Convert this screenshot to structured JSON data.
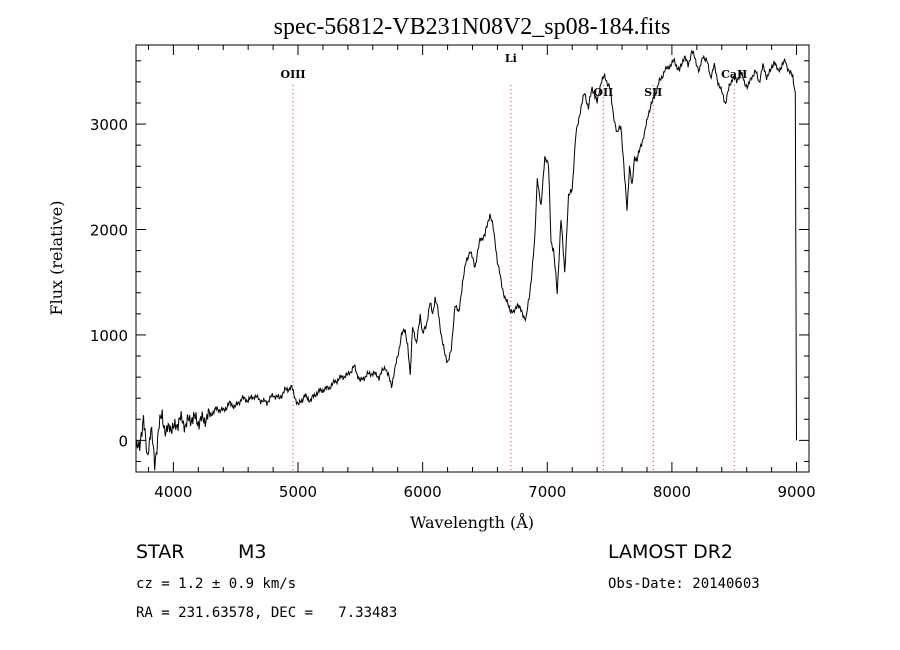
{
  "chart_data": {
    "type": "line",
    "title": "spec-56812-VB231N08V2_sp08-184.fits",
    "xlabel": "Wavelength (Å)",
    "ylabel": "Flux (relative)",
    "xlim": [
      3700,
      9100
    ],
    "ylim": [
      -300,
      3750
    ],
    "xticks": [
      4000,
      5000,
      6000,
      7000,
      8000,
      9000
    ],
    "xtick_labels": [
      "4000",
      "5000",
      "6000",
      "7000",
      "8000",
      "9000"
    ],
    "yticks": [
      0,
      1000,
      2000,
      3000
    ],
    "ytick_labels": [
      "0",
      "1000",
      "2000",
      "3000"
    ],
    "grid": false,
    "lines": [
      {
        "label": "OIII",
        "x": 4960
      },
      {
        "label": "Li",
        "x": 6708
      },
      {
        "label": "OII",
        "x": 7450
      },
      {
        "label": "SII",
        "x": 7850
      },
      {
        "label": "CaII",
        "x": 8500
      }
    ],
    "series": [
      {
        "x": [
          3700,
          3730,
          3760,
          3790,
          3820,
          3850,
          3880,
          3910,
          3940,
          3970,
          4000,
          4050,
          4100,
          4150,
          4200,
          4250,
          4300,
          4350,
          4400,
          4450,
          4500,
          4550,
          4600,
          4650,
          4700,
          4750,
          4800,
          4850,
          4900,
          4950,
          5000,
          5050,
          5100,
          5150,
          5200,
          5250,
          5300,
          5350,
          5400,
          5450,
          5500,
          5550,
          5600,
          5650,
          5700,
          5750,
          5800,
          5830,
          5860,
          5880,
          5900,
          5920,
          5950,
          5980,
          6000,
          6030,
          6060,
          6080,
          6100,
          6120,
          6150,
          6180,
          6200,
          6230,
          6260,
          6290,
          6320,
          6350,
          6380,
          6420,
          6460,
          6500,
          6540,
          6560,
          6580,
          6600,
          6630,
          6660,
          6700,
          6730,
          6760,
          6800,
          6830,
          6860,
          6900,
          6920,
          6950,
          6980,
          7010,
          7030,
          7050,
          7080,
          7110,
          7140,
          7170,
          7200,
          7230,
          7260,
          7300,
          7330,
          7360,
          7400,
          7430,
          7460,
          7500,
          7530,
          7560,
          7590,
          7620,
          7640,
          7660,
          7680,
          7700,
          7720,
          7750,
          7780,
          7810,
          7840,
          7870,
          7900,
          7940,
          7980,
          8020,
          8060,
          8100,
          8130,
          8160,
          8190,
          8220,
          8250,
          8280,
          8310,
          8340,
          8370,
          8400,
          8430,
          8460,
          8490,
          8520,
          8550,
          8580,
          8610,
          8640,
          8670,
          8700,
          8730,
          8760,
          8790,
          8820,
          8850,
          8880,
          8910,
          8940,
          8970,
          8990,
          9000
        ],
        "y": [
          0,
          -100,
          250,
          -200,
          150,
          -250,
          100,
          250,
          50,
          150,
          100,
          200,
          150,
          220,
          180,
          200,
          250,
          300,
          280,
          350,
          320,
          400,
          380,
          420,
          380,
          360,
          430,
          400,
          480,
          500,
          330,
          420,
          380,
          450,
          480,
          500,
          560,
          600,
          620,
          700,
          560,
          620,
          640,
          600,
          700,
          520,
          800,
          1000,
          1050,
          900,
          600,
          1100,
          900,
          1200,
          1000,
          1100,
          1300,
          1200,
          1350,
          1250,
          1000,
          800,
          750,
          850,
          1300,
          1200,
          1500,
          1700,
          1800,
          1650,
          1900,
          1950,
          2150,
          2050,
          1900,
          1700,
          1500,
          1350,
          1250,
          1200,
          1300,
          1200,
          1150,
          1400,
          1900,
          2500,
          2200,
          2700,
          2600,
          1900,
          1800,
          1400,
          2100,
          1600,
          2300,
          2400,
          2900,
          3100,
          3300,
          3150,
          3350,
          3200,
          3400,
          3450,
          3350,
          3100,
          2900,
          3000,
          2500,
          2200,
          2600,
          2400,
          2700,
          2650,
          2800,
          2900,
          3100,
          3200,
          3300,
          3400,
          3500,
          3550,
          3600,
          3500,
          3650,
          3550,
          3700,
          3600,
          3500,
          3650,
          3600,
          3450,
          3550,
          3400,
          3300,
          3200,
          3350,
          3450,
          3400,
          3500,
          3400,
          3350,
          3450,
          3500,
          3400,
          3550,
          3450,
          3500,
          3600,
          3500,
          3550,
          3600,
          3500,
          3450,
          3300,
          0
        ]
      }
    ]
  },
  "info": {
    "object_class": "STAR",
    "subclass": "M3",
    "survey": "LAMOST DR2",
    "cz": "cz = 1.2 ± 0.9 km/s",
    "obs_date": "Obs-Date: 20140603",
    "coords": "RA = 231.63578, DEC =   7.33483"
  }
}
